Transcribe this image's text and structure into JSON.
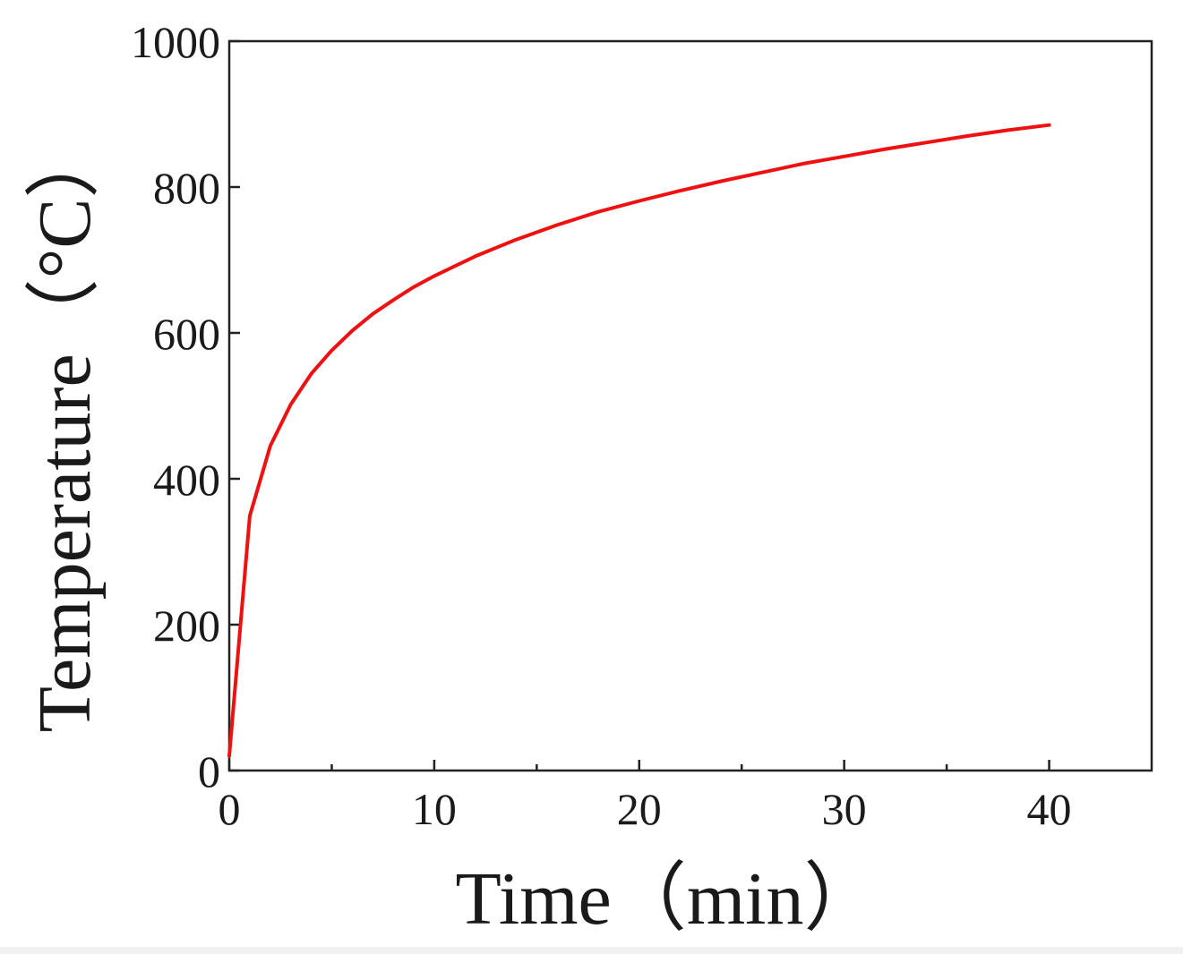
{
  "chart_data": {
    "type": "line",
    "title": "",
    "xlabel": "Time（min）",
    "ylabel": "Temperature（°C）",
    "xlim": [
      0,
      45
    ],
    "ylim": [
      0,
      1000
    ],
    "x_ticks": [
      0,
      10,
      20,
      30,
      40
    ],
    "y_ticks": [
      0,
      200,
      400,
      600,
      800,
      1000
    ],
    "x_minor_ticks": [
      5,
      15,
      25,
      35
    ],
    "grid": false,
    "series": [
      {
        "color": "#ee1111",
        "x": [
          0,
          1,
          2,
          3,
          4,
          5,
          6,
          7,
          8,
          9,
          10,
          12,
          14,
          16,
          18,
          20,
          22,
          24,
          26,
          28,
          30,
          32,
          34,
          36,
          38,
          40
        ],
        "y": [
          20,
          349,
          445,
          502,
          544,
          576,
          603,
          626,
          645,
          663,
          678,
          705,
          728,
          748,
          766,
          781,
          795,
          808,
          820,
          832,
          842,
          852,
          861,
          870,
          878,
          885
        ]
      }
    ]
  }
}
